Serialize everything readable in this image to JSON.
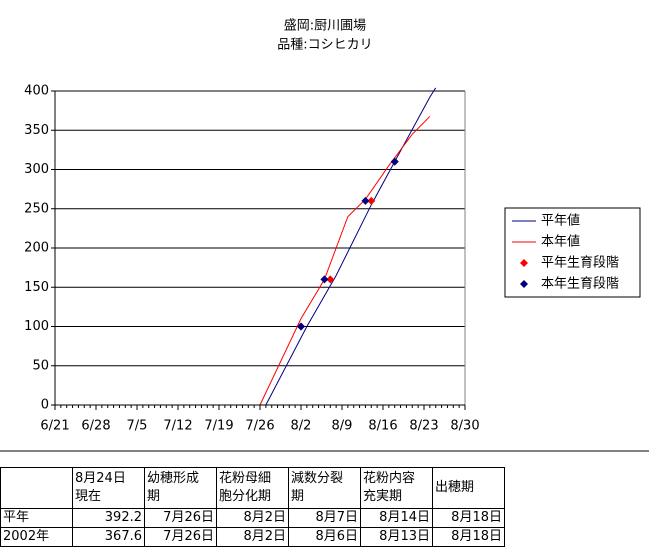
{
  "chart_data": {
    "type": "line",
    "title": "盛岡:厨川圃場",
    "subtitle": "品種:コシヒカリ",
    "xlim": [
      "6/21",
      "8/30"
    ],
    "xticks": [
      "6/21",
      "6/28",
      "7/5",
      "7/12",
      "7/19",
      "7/26",
      "8/2",
      "8/9",
      "8/16",
      "8/23",
      "8/30"
    ],
    "ylim": [
      0,
      400
    ],
    "yticks": [
      0,
      50,
      100,
      150,
      200,
      250,
      300,
      350,
      400
    ],
    "grid": true,
    "series": [
      {
        "name": "平年値",
        "color": "#000080",
        "style": "line",
        "x": [
          "7/27",
          "8/3",
          "8/8",
          "8/14",
          "8/18",
          "8/24",
          "8/25"
        ],
        "values": [
          0,
          100,
          165,
          255,
          310,
          392.2,
          404
        ]
      },
      {
        "name": "本年値",
        "color": "#ff0000",
        "style": "line",
        "x": [
          "7/26",
          "8/2",
          "8/6",
          "8/10",
          "8/13",
          "8/17",
          "8/21",
          "8/24"
        ],
        "values": [
          0,
          110,
          160,
          240,
          262,
          305,
          345,
          367.6
        ]
      },
      {
        "name": "平年生育段階",
        "color": "#ff0000",
        "style": "marker",
        "x": [
          "8/2",
          "8/7",
          "8/14",
          "8/18"
        ],
        "values": [
          100,
          160,
          260,
          310
        ]
      },
      {
        "name": "本年生育段階",
        "color": "#000080",
        "style": "marker",
        "x": [
          "8/2",
          "8/6",
          "8/13",
          "8/18"
        ],
        "values": [
          100,
          160,
          260,
          310
        ]
      }
    ]
  },
  "table": {
    "header": [
      "8月24日\n現在",
      "幼穂形成\n期",
      "花粉母細\n胞分化期",
      "減数分裂\n期",
      "花粉内容\n充実期",
      "出穂期"
    ],
    "rows": [
      [
        "平年",
        "392.2",
        "7月26日",
        "8月2日",
        "8月7日",
        "8月14日",
        "8月18日"
      ],
      [
        "2002年",
        "367.6",
        "7月26日",
        "8月2日",
        "8月6日",
        "8月13日",
        "8月18日"
      ]
    ]
  }
}
